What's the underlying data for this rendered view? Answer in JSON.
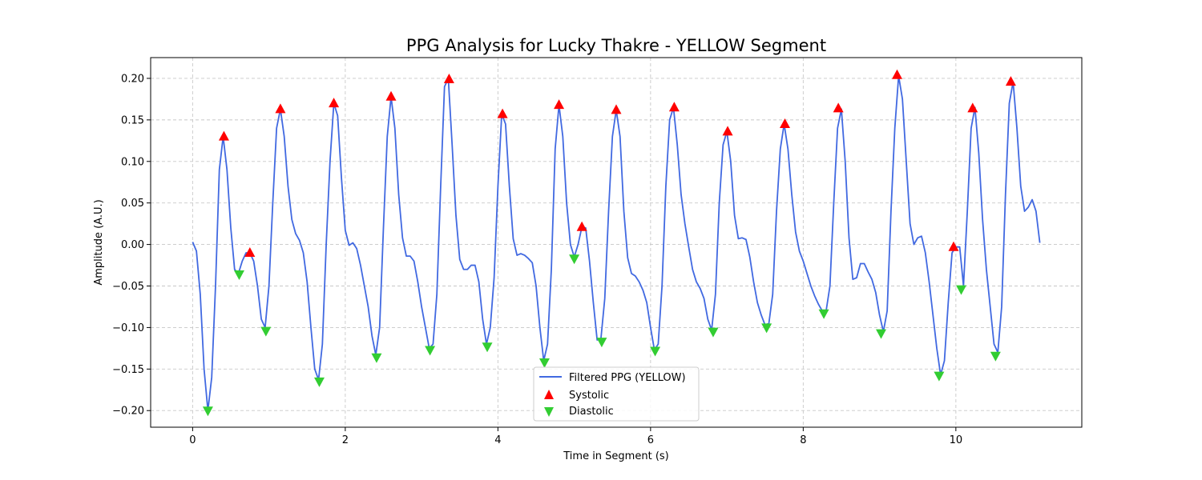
{
  "chart_data": {
    "type": "line",
    "title": "PPG Analysis for Lucky Thakre - YELLOW Segment",
    "xlabel": "Time in Segment (s)",
    "ylabel": "Amplitude (A.U.)",
    "xlim": [
      -0.55,
      11.65
    ],
    "ylim": [
      -0.22,
      0.225
    ],
    "xticks": [
      0,
      2,
      4,
      6,
      8,
      10
    ],
    "yticks": [
      -0.2,
      -0.15,
      -0.1,
      -0.05,
      0.0,
      0.05,
      0.1,
      0.15,
      0.2
    ],
    "ytick_labels": [
      "−0.20",
      "−0.15",
      "−0.10",
      "−0.05",
      "0.00",
      "0.05",
      "0.10",
      "0.15",
      "0.20"
    ],
    "grid": true,
    "legend_position": "lower center",
    "colors": {
      "line": "#4169e1",
      "systolic": "#ff0000",
      "diastolic": "#32cd32"
    },
    "series": [
      {
        "name": "Filtered PPG (YELLOW)",
        "kind": "line",
        "points": [
          [
            0.0,
            0.003
          ],
          [
            0.05,
            -0.008
          ],
          [
            0.1,
            -0.06
          ],
          [
            0.15,
            -0.15
          ],
          [
            0.2,
            -0.2
          ],
          [
            0.25,
            -0.16
          ],
          [
            0.3,
            -0.05
          ],
          [
            0.35,
            0.09
          ],
          [
            0.4,
            0.13
          ],
          [
            0.45,
            0.09
          ],
          [
            0.5,
            0.02
          ],
          [
            0.55,
            -0.03
          ],
          [
            0.6,
            -0.035
          ],
          [
            0.65,
            -0.02
          ],
          [
            0.7,
            -0.01
          ],
          [
            0.75,
            -0.01
          ],
          [
            0.8,
            -0.02
          ],
          [
            0.85,
            -0.05
          ],
          [
            0.9,
            -0.09
          ],
          [
            0.95,
            -0.1
          ],
          [
            1.0,
            -0.05
          ],
          [
            1.05,
            0.05
          ],
          [
            1.1,
            0.14
          ],
          [
            1.15,
            0.163
          ],
          [
            1.2,
            0.13
          ],
          [
            1.25,
            0.07
          ],
          [
            1.3,
            0.03
          ],
          [
            1.35,
            0.013
          ],
          [
            1.4,
            0.005
          ],
          [
            1.45,
            -0.01
          ],
          [
            1.5,
            -0.045
          ],
          [
            1.55,
            -0.1
          ],
          [
            1.6,
            -0.15
          ],
          [
            1.65,
            -0.163
          ],
          [
            1.7,
            -0.12
          ],
          [
            1.75,
            0.0
          ],
          [
            1.8,
            0.1
          ],
          [
            1.85,
            0.17
          ],
          [
            1.9,
            0.155
          ],
          [
            1.95,
            0.08
          ],
          [
            2.0,
            0.017
          ],
          [
            2.05,
            -0.001
          ],
          [
            2.1,
            0.002
          ],
          [
            2.15,
            -0.005
          ],
          [
            2.2,
            -0.025
          ],
          [
            2.25,
            -0.05
          ],
          [
            2.3,
            -0.075
          ],
          [
            2.35,
            -0.11
          ],
          [
            2.4,
            -0.133
          ],
          [
            2.45,
            -0.1
          ],
          [
            2.5,
            0.02
          ],
          [
            2.55,
            0.13
          ],
          [
            2.6,
            0.178
          ],
          [
            2.65,
            0.14
          ],
          [
            2.7,
            0.06
          ],
          [
            2.75,
            0.008
          ],
          [
            2.8,
            -0.014
          ],
          [
            2.85,
            -0.014
          ],
          [
            2.9,
            -0.02
          ],
          [
            2.95,
            -0.045
          ],
          [
            3.0,
            -0.075
          ],
          [
            3.05,
            -0.1
          ],
          [
            3.1,
            -0.125
          ],
          [
            3.15,
            -0.12
          ],
          [
            3.2,
            -0.06
          ],
          [
            3.25,
            0.07
          ],
          [
            3.3,
            0.19
          ],
          [
            3.35,
            0.2
          ],
          [
            3.4,
            0.12
          ],
          [
            3.45,
            0.035
          ],
          [
            3.5,
            -0.018
          ],
          [
            3.55,
            -0.03
          ],
          [
            3.6,
            -0.03
          ],
          [
            3.65,
            -0.025
          ],
          [
            3.7,
            -0.025
          ],
          [
            3.75,
            -0.045
          ],
          [
            3.8,
            -0.09
          ],
          [
            3.85,
            -0.12
          ],
          [
            3.9,
            -0.1
          ],
          [
            3.95,
            -0.04
          ],
          [
            4.0,
            0.07
          ],
          [
            4.05,
            0.157
          ],
          [
            4.1,
            0.145
          ],
          [
            4.15,
            0.07
          ],
          [
            4.2,
            0.007
          ],
          [
            4.25,
            -0.013
          ],
          [
            4.3,
            -0.011
          ],
          [
            4.35,
            -0.013
          ],
          [
            4.4,
            -0.017
          ],
          [
            4.45,
            -0.022
          ],
          [
            4.5,
            -0.05
          ],
          [
            4.55,
            -0.1
          ],
          [
            4.6,
            -0.14
          ],
          [
            4.65,
            -0.12
          ],
          [
            4.7,
            -0.03
          ],
          [
            4.75,
            0.115
          ],
          [
            4.8,
            0.168
          ],
          [
            4.85,
            0.13
          ],
          [
            4.9,
            0.05
          ],
          [
            4.95,
            0.0
          ],
          [
            5.0,
            -0.015
          ],
          [
            5.05,
            0.0
          ],
          [
            5.1,
            0.021
          ],
          [
            5.15,
            0.02
          ],
          [
            5.2,
            -0.02
          ],
          [
            5.25,
            -0.07
          ],
          [
            5.3,
            -0.115
          ],
          [
            5.35,
            -0.113
          ],
          [
            5.4,
            -0.065
          ],
          [
            5.45,
            0.04
          ],
          [
            5.5,
            0.13
          ],
          [
            5.55,
            0.162
          ],
          [
            5.6,
            0.13
          ],
          [
            5.65,
            0.04
          ],
          [
            5.7,
            -0.016
          ],
          [
            5.75,
            -0.035
          ],
          [
            5.8,
            -0.038
          ],
          [
            5.85,
            -0.045
          ],
          [
            5.9,
            -0.055
          ],
          [
            5.95,
            -0.07
          ],
          [
            6.0,
            -0.1
          ],
          [
            6.05,
            -0.127
          ],
          [
            6.1,
            -0.12
          ],
          [
            6.15,
            -0.05
          ],
          [
            6.2,
            0.07
          ],
          [
            6.25,
            0.15
          ],
          [
            6.3,
            0.165
          ],
          [
            6.35,
            0.12
          ],
          [
            6.4,
            0.06
          ],
          [
            6.45,
            0.025
          ],
          [
            6.5,
            -0.003
          ],
          [
            6.55,
            -0.03
          ],
          [
            6.6,
            -0.045
          ],
          [
            6.65,
            -0.053
          ],
          [
            6.7,
            -0.065
          ],
          [
            6.75,
            -0.09
          ],
          [
            6.8,
            -0.103
          ],
          [
            6.85,
            -0.06
          ],
          [
            6.9,
            0.05
          ],
          [
            6.95,
            0.12
          ],
          [
            7.0,
            0.136
          ],
          [
            7.05,
            0.1
          ],
          [
            7.1,
            0.035
          ],
          [
            7.15,
            0.007
          ],
          [
            7.2,
            0.008
          ],
          [
            7.25,
            0.006
          ],
          [
            7.3,
            -0.015
          ],
          [
            7.35,
            -0.045
          ],
          [
            7.4,
            -0.07
          ],
          [
            7.45,
            -0.085
          ],
          [
            7.5,
            -0.097
          ],
          [
            7.55,
            -0.095
          ],
          [
            7.6,
            -0.06
          ],
          [
            7.65,
            0.04
          ],
          [
            7.7,
            0.115
          ],
          [
            7.75,
            0.145
          ],
          [
            7.8,
            0.115
          ],
          [
            7.85,
            0.06
          ],
          [
            7.9,
            0.015
          ],
          [
            7.95,
            -0.008
          ],
          [
            8.0,
            -0.02
          ],
          [
            8.05,
            -0.035
          ],
          [
            8.1,
            -0.05
          ],
          [
            8.15,
            -0.062
          ],
          [
            8.2,
            -0.072
          ],
          [
            8.25,
            -0.08
          ],
          [
            8.3,
            -0.08
          ],
          [
            8.35,
            -0.05
          ],
          [
            8.4,
            0.05
          ],
          [
            8.45,
            0.14
          ],
          [
            8.5,
            0.163
          ],
          [
            8.55,
            0.1
          ],
          [
            8.6,
            0.008
          ],
          [
            8.65,
            -0.042
          ],
          [
            8.7,
            -0.04
          ],
          [
            8.75,
            -0.023
          ],
          [
            8.8,
            -0.023
          ],
          [
            8.85,
            -0.033
          ],
          [
            8.9,
            -0.042
          ],
          [
            8.95,
            -0.058
          ],
          [
            9.0,
            -0.085
          ],
          [
            9.05,
            -0.105
          ],
          [
            9.1,
            -0.08
          ],
          [
            9.15,
            0.04
          ],
          [
            9.2,
            0.14
          ],
          [
            9.25,
            0.203
          ],
          [
            9.3,
            0.175
          ],
          [
            9.35,
            0.1
          ],
          [
            9.4,
            0.025
          ],
          [
            9.45,
            0.0
          ],
          [
            9.5,
            0.008
          ],
          [
            9.55,
            0.01
          ],
          [
            9.6,
            -0.01
          ],
          [
            9.65,
            -0.045
          ],
          [
            9.7,
            -0.085
          ],
          [
            9.75,
            -0.125
          ],
          [
            9.8,
            -0.157
          ],
          [
            9.85,
            -0.14
          ],
          [
            9.9,
            -0.07
          ],
          [
            9.95,
            -0.01
          ],
          [
            10.0,
            -0.003
          ],
          [
            10.05,
            -0.003
          ],
          [
            10.1,
            -0.05
          ],
          [
            10.15,
            0.04
          ],
          [
            10.2,
            0.14
          ],
          [
            10.25,
            0.165
          ],
          [
            10.3,
            0.11
          ],
          [
            10.35,
            0.03
          ],
          [
            10.4,
            -0.03
          ],
          [
            10.45,
            -0.075
          ],
          [
            10.5,
            -0.12
          ],
          [
            10.55,
            -0.13
          ],
          [
            10.6,
            -0.075
          ],
          [
            10.65,
            0.06
          ],
          [
            10.7,
            0.17
          ],
          [
            10.75,
            0.196
          ],
          [
            10.8,
            0.14
          ],
          [
            10.85,
            0.07
          ],
          [
            10.9,
            0.04
          ],
          [
            10.95,
            0.045
          ],
          [
            11.0,
            0.054
          ],
          [
            11.05,
            0.04
          ],
          [
            11.1,
            0.002
          ]
        ]
      },
      {
        "name": "Systolic",
        "kind": "marker-up",
        "points": [
          [
            0.41,
            0.13
          ],
          [
            0.75,
            -0.01
          ],
          [
            1.15,
            0.163
          ],
          [
            1.85,
            0.17
          ],
          [
            2.6,
            0.178
          ],
          [
            3.36,
            0.199
          ],
          [
            4.06,
            0.157
          ],
          [
            4.8,
            0.168
          ],
          [
            5.1,
            0.021
          ],
          [
            5.55,
            0.162
          ],
          [
            6.31,
            0.165
          ],
          [
            7.01,
            0.136
          ],
          [
            7.76,
            0.145
          ],
          [
            8.46,
            0.164
          ],
          [
            9.23,
            0.204
          ],
          [
            9.97,
            -0.003
          ],
          [
            10.22,
            0.164
          ],
          [
            10.72,
            0.196
          ]
        ]
      },
      {
        "name": "Diastolic",
        "kind": "marker-down",
        "points": [
          [
            0.2,
            -0.2
          ],
          [
            0.61,
            -0.036
          ],
          [
            0.96,
            -0.104
          ],
          [
            1.66,
            -0.165
          ],
          [
            2.41,
            -0.136
          ],
          [
            3.11,
            -0.127
          ],
          [
            3.86,
            -0.123
          ],
          [
            4.61,
            -0.142
          ],
          [
            5.0,
            -0.017
          ],
          [
            5.36,
            -0.117
          ],
          [
            6.06,
            -0.128
          ],
          [
            6.82,
            -0.105
          ],
          [
            7.52,
            -0.1
          ],
          [
            8.27,
            -0.083
          ],
          [
            9.02,
            -0.107
          ],
          [
            9.78,
            -0.158
          ],
          [
            10.07,
            -0.054
          ],
          [
            10.52,
            -0.134
          ]
        ]
      }
    ]
  }
}
